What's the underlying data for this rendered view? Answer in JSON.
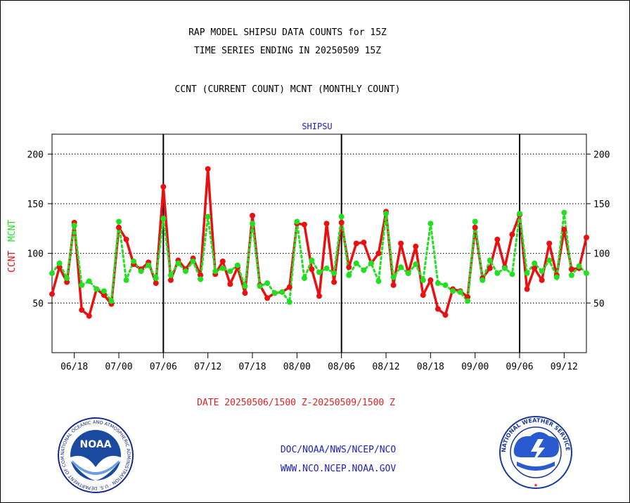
{
  "header": {
    "title_line1": "RAP MODEL SHIPSU DATA COUNTS for 15Z",
    "title_line2": "TIME SERIES ENDING IN 20250509 15Z",
    "subtitle": "CCNT (CURRENT COUNT) MCNT (MONTHLY COUNT)"
  },
  "footer": {
    "date_range": "DATE 20250506/1500 Z-20250509/1500 Z",
    "link1": "DOC/NOAA/NWS/NCEP/NCO",
    "link2": "WWW.NCO.NCEP.NOAA.GOV"
  },
  "logos": {
    "noaa": "NOAA",
    "nws_ring": "NATIONAL WEATHER SERVICE",
    "noaa_ring": "NATIONAL OCEANIC AND ATMOSPHERIC ADMINISTRATION · U.S. DEPARTMENT OF COMMERCE"
  },
  "colors": {
    "ccnt": "#e81010",
    "mcnt": "#20e020",
    "axis_label_text": "#2020c0"
  },
  "chart_data": {
    "type": "line",
    "title": "SHIPSU",
    "ylabel_ccnt": "CCNT",
    "ylabel_mcnt": "MCNT",
    "ylim": [
      0,
      220
    ],
    "yticks": [
      50,
      100,
      150,
      200
    ],
    "grid": "dotted horizontal at y ticks",
    "xticklabels": [
      "06/18",
      "07/00",
      "07/06",
      "07/12",
      "07/18",
      "08/00",
      "08/06",
      "08/12",
      "08/18",
      "09/00",
      "09/06",
      "09/12"
    ],
    "xticks_hours": [
      3,
      9,
      15,
      21,
      27,
      33,
      39,
      45,
      51,
      57,
      63,
      69
    ],
    "day_boundaries_hours": [
      15,
      39,
      63
    ],
    "xlim_hours": [
      0,
      72
    ],
    "series": [
      {
        "name": "CCNT",
        "hours": [
          0,
          1,
          2,
          3,
          4,
          5,
          6,
          7,
          8,
          9,
          10,
          11,
          12,
          13,
          14,
          15,
          16,
          17,
          18,
          19,
          20,
          21,
          22,
          23,
          24,
          25,
          26,
          27,
          28,
          29,
          30,
          31,
          32,
          33,
          34,
          35,
          36,
          37,
          38,
          39,
          40,
          41,
          42,
          43,
          44,
          45,
          46,
          47,
          48,
          49,
          50,
          51,
          52,
          53,
          54,
          55,
          56,
          57,
          58,
          59,
          60,
          61,
          62,
          63,
          64,
          65,
          66,
          67,
          68,
          69,
          70,
          71,
          72
        ],
        "values": [
          59,
          86,
          71,
          131,
          43,
          37,
          64,
          58,
          49,
          126,
          114,
          89,
          84,
          91,
          70,
          167,
          73,
          93,
          84,
          95,
          78,
          185,
          79,
          92,
          69,
          86,
          60,
          138,
          68,
          55,
          60,
          61,
          66,
          130,
          129,
          84,
          57,
          130,
          71,
          131,
          86,
          110,
          111,
          90,
          100,
          142,
          68,
          110,
          80,
          107,
          58,
          73,
          44,
          38,
          64,
          62,
          56,
          126,
          75,
          85,
          114,
          86,
          119,
          139,
          64,
          85,
          73,
          110,
          78,
          124,
          84,
          85,
          116
        ]
      },
      {
        "name": "MCNT",
        "hours": [
          0,
          1,
          2,
          3,
          4,
          5,
          6,
          7,
          8,
          9,
          10,
          11,
          12,
          13,
          14,
          15,
          16,
          17,
          18,
          19,
          20,
          21,
          22,
          23,
          24,
          25,
          26,
          27,
          28,
          29,
          30,
          31,
          32,
          33,
          34,
          35,
          36,
          37,
          38,
          39,
          40,
          41,
          42,
          43,
          44,
          45,
          46,
          47,
          48,
          49,
          50,
          51,
          52,
          53,
          54,
          55,
          56,
          57,
          58,
          59,
          60,
          61,
          62,
          63,
          64,
          65,
          66,
          67,
          68,
          69,
          70,
          71,
          72
        ],
        "values": [
          80,
          90,
          75,
          128,
          68,
          72,
          64,
          62,
          52,
          132,
          73,
          92,
          82,
          88,
          75,
          135,
          78,
          90,
          82,
          92,
          74,
          137,
          82,
          85,
          82,
          88,
          67,
          130,
          67,
          70,
          60,
          61,
          51,
          132,
          75,
          93,
          81,
          85,
          80,
          137,
          78,
          90,
          83,
          90,
          72,
          140,
          76,
          86,
          80,
          89,
          73,
          130,
          70,
          68,
          62,
          61,
          52,
          132,
          73,
          93,
          80,
          85,
          79,
          140,
          80,
          90,
          82,
          93,
          76,
          141,
          78,
          87,
          80
        ]
      }
    ]
  }
}
